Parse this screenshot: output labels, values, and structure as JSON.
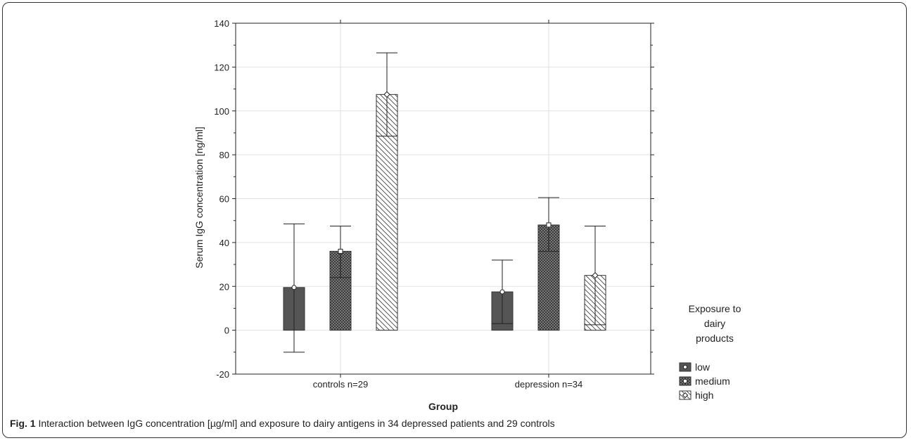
{
  "chart_data": {
    "type": "bar",
    "xlabel": "Group",
    "ylabel": "Serum IgG concentration [ng/ml]",
    "ylim": [
      -20,
      140
    ],
    "yticks": [
      -20,
      0,
      20,
      40,
      60,
      80,
      100,
      120,
      140
    ],
    "categories": [
      "controls n=29",
      "depression n=34"
    ],
    "grid": true,
    "legend": {
      "title_lines": [
        "Exposure to",
        "dairy",
        "products"
      ],
      "placement": "right"
    },
    "series": [
      {
        "name": "low",
        "marker": "circle",
        "fill": "solid",
        "color": "#555555",
        "values": [
          19.5,
          17.5
        ],
        "err_low": [
          -10,
          3
        ],
        "err_high": [
          48.5,
          32
        ]
      },
      {
        "name": "medium",
        "marker": "square",
        "fill": "crosshatch",
        "color": "#444444",
        "values": [
          36,
          48
        ],
        "err_low": [
          24,
          36
        ],
        "err_high": [
          47.5,
          60.5
        ]
      },
      {
        "name": "high",
        "marker": "diamond",
        "fill": "diagonal",
        "color": "#444444",
        "values": [
          107.5,
          25
        ],
        "err_low": [
          88.5,
          2.5
        ],
        "err_high": [
          126.5,
          47.5
        ]
      }
    ]
  },
  "caption": {
    "label": "Fig. 1",
    "text": " Interaction between IgG concentration [µg/ml] and exposure to dairy antigens in 34 depressed patients and 29 controls"
  }
}
